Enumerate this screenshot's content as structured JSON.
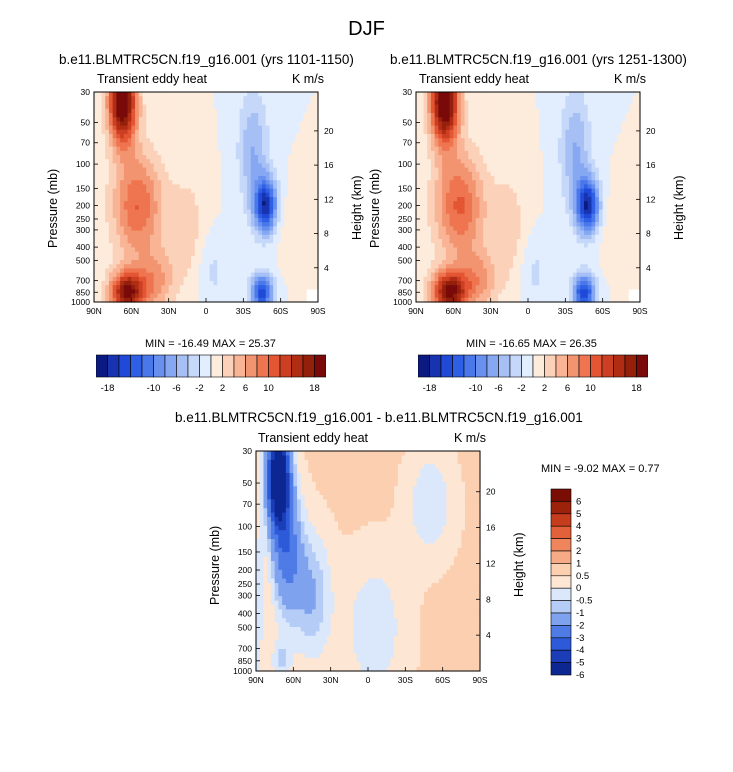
{
  "figure": {
    "title": "DJF"
  },
  "chart_data": [
    {
      "type": "heatmap",
      "title": "b.e11.BLMTRC5CN.f19_g16.001 (yrs 1101-1150)",
      "left_label": "Transient eddy heat",
      "units": "K m/s",
      "ylabel": "Pressure (mb)",
      "ylabel_right": "Height (km)",
      "xlabel": "",
      "x_ticks": [
        "90N",
        "60N",
        "30N",
        "0",
        "30S",
        "60S",
        "90S"
      ],
      "y_ticks": [
        "30",
        "50",
        "70",
        "100",
        "150",
        "200",
        "250",
        "300",
        "400",
        "500",
        "700",
        "850",
        "1000"
      ],
      "y_ticks_right": [
        "20",
        "16",
        "12",
        "8",
        "4"
      ],
      "min": -16.49,
      "max": 25.37,
      "minmax_text": "MIN = -16.49  MAX = 25.37",
      "contour_levels": [
        -18,
        -16,
        -14,
        -12,
        -10,
        -8,
        -6,
        -4,
        -2,
        0,
        2,
        4,
        6,
        8,
        10,
        12,
        14,
        16,
        18
      ],
      "colorbar_labels": [
        "-18",
        "-10",
        "-6",
        "-2",
        "2",
        "6",
        "10",
        "18"
      ]
    },
    {
      "type": "heatmap",
      "title": "b.e11.BLMTRC5CN.f19_g16.001 (yrs 1251-1300)",
      "left_label": "Transient eddy heat",
      "units": "K m/s",
      "ylabel": "Pressure (mb)",
      "ylabel_right": "Height (km)",
      "xlabel": "",
      "x_ticks": [
        "90N",
        "60N",
        "30N",
        "0",
        "30S",
        "60S",
        "90S"
      ],
      "y_ticks": [
        "30",
        "50",
        "70",
        "100",
        "150",
        "200",
        "250",
        "300",
        "400",
        "500",
        "700",
        "850",
        "1000"
      ],
      "y_ticks_right": [
        "20",
        "16",
        "12",
        "8",
        "4"
      ],
      "min": -16.65,
      "max": 26.35,
      "minmax_text": "MIN = -16.65  MAX = 26.35",
      "contour_levels": [
        -18,
        -16,
        -14,
        -12,
        -10,
        -8,
        -6,
        -4,
        -2,
        0,
        2,
        4,
        6,
        8,
        10,
        12,
        14,
        16,
        18
      ],
      "colorbar_labels": [
        "-18",
        "-10",
        "-6",
        "-2",
        "2",
        "6",
        "10",
        "18"
      ]
    },
    {
      "type": "heatmap",
      "title": "b.e11.BLMTRC5CN.f19_g16.001 - b.e11.BLMTRC5CN.f19_g16.001",
      "left_label": "Transient eddy heat",
      "units": "K m/s",
      "ylabel": "Pressure (mb)",
      "ylabel_right": "Height (km)",
      "xlabel": "",
      "x_ticks": [
        "90N",
        "60N",
        "30N",
        "0",
        "30S",
        "60S",
        "90S"
      ],
      "y_ticks": [
        "30",
        "50",
        "70",
        "100",
        "150",
        "200",
        "250",
        "300",
        "400",
        "500",
        "700",
        "850",
        "1000"
      ],
      "y_ticks_right": [
        "20",
        "16",
        "12",
        "8",
        "4"
      ],
      "min": -9.02,
      "max": 0.77,
      "minmax_text": "MIN = -9.02  MAX = 0.77",
      "contour_levels": [
        -6,
        -5,
        -4,
        -3,
        -2,
        -1,
        -0.5,
        0,
        0.5,
        1,
        2,
        3,
        4,
        5,
        6
      ],
      "colorbar_labels": [
        "6",
        "5",
        "4",
        "3",
        "2",
        "1",
        "0.5",
        "0",
        "-0.5",
        "-1",
        "-2",
        "-3",
        "-4",
        "-5",
        "-6"
      ]
    }
  ],
  "colors": {
    "dark_blue": "#0a1a80",
    "deep_red": "#7a0a0a",
    "white": "#ffffff"
  }
}
